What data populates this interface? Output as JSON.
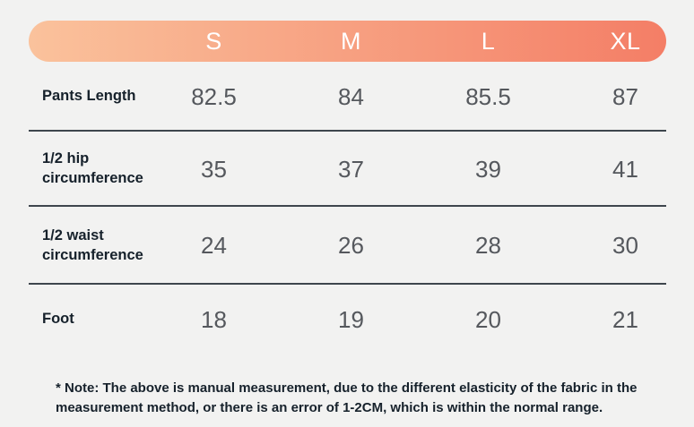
{
  "chart_data": {
    "type": "table",
    "title": "",
    "columns": [
      "",
      "S",
      "M",
      "L",
      "XL"
    ],
    "row_labels": [
      "Pants Length",
      "1/2 hip circumference",
      "1/2 waist circumference",
      "Foot"
    ],
    "rows": [
      [
        "Pants Length",
        "82.5",
        "84",
        "85.5",
        "87"
      ],
      [
        "1/2 hip circumference",
        "35",
        "37",
        "39",
        "41"
      ],
      [
        "1/2 waist circumference",
        "24",
        "26",
        "28",
        "30"
      ],
      [
        "Foot",
        "18",
        "19",
        "20",
        "21"
      ]
    ],
    "note": "* Note: The above is manual measurement, due to the different elasticity of the fabric in the measurement method, or there is an error of 1-2CM, which is within the normal range.",
    "layout": {
      "grid": "off",
      "header_style": "gradient-pill",
      "dividers": "horizontal-only"
    },
    "colors": {
      "gradient_start": "#fac29c",
      "gradient_end": "#f47e66",
      "background": "#f2f2f1",
      "divider": "#3e464d",
      "label_text": "#16212b",
      "value_text": "#55585d",
      "header_text": "#ffffff"
    }
  }
}
